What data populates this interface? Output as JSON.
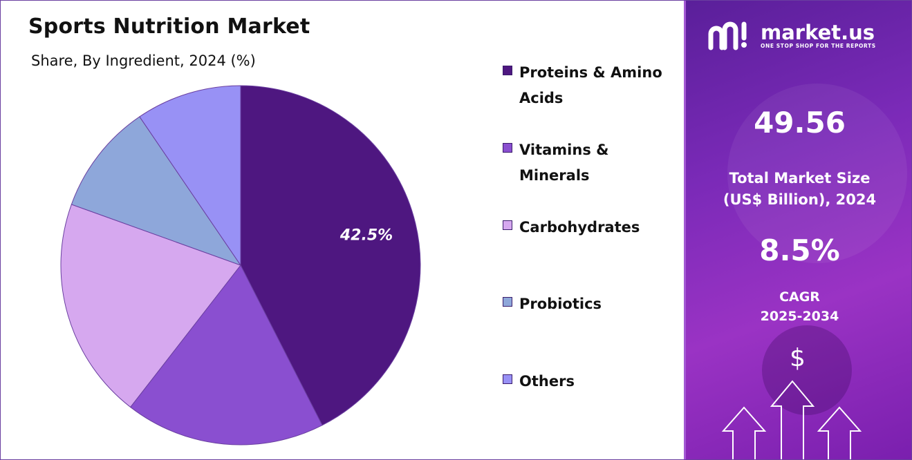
{
  "title": "Sports Nutrition Market",
  "subtitle": "Share, By Ingredient, 2024 (%)",
  "chart_data": {
    "type": "pie",
    "categories": [
      "Proteins & Amino Acids",
      "Vitamins & Minerals",
      "Carbohydrates",
      "Probiotics",
      "Others"
    ],
    "values": [
      42.5,
      18.0,
      20.0,
      10.0,
      9.5
    ],
    "colors": [
      "#4e1780",
      "#8a4fd0",
      "#d6a8ef",
      "#8ea7da",
      "#9891f5"
    ],
    "data_labels": [
      "42.5%",
      "",
      "",
      "",
      ""
    ],
    "legend": [
      "Proteins & Amino Acids",
      "Vitamins & Minerals",
      "Carbohydrates",
      "Probiotics",
      "Others"
    ],
    "legend_lines": [
      [
        "Proteins & Amino",
        "Acids"
      ],
      [
        "Vitamins &",
        "Minerals"
      ],
      [
        "Carbohydrates"
      ],
      [
        "Probiotics"
      ],
      [
        "Others"
      ]
    ],
    "legend_position": "right"
  },
  "brand": {
    "name": "market.us",
    "tagline": "ONE STOP SHOP FOR THE REPORTS",
    "logo_icon": "market-us-logo-icon"
  },
  "stats": {
    "market_size": "49.56",
    "market_size_label_1": "Total Market Size",
    "market_size_label_2": "(US$ Billion), 2024",
    "cagr": "8.5%",
    "cagr_label_1": "CAGR",
    "cagr_label_2": "2025-2034"
  },
  "decor": {
    "dollar_symbol": "$",
    "dollar_icon": "dollar-icon",
    "arrows_icon": "growth-arrows-icon"
  },
  "theme": {
    "panel_color": "#7b2ab8",
    "border_color": "#6a3fa0"
  }
}
